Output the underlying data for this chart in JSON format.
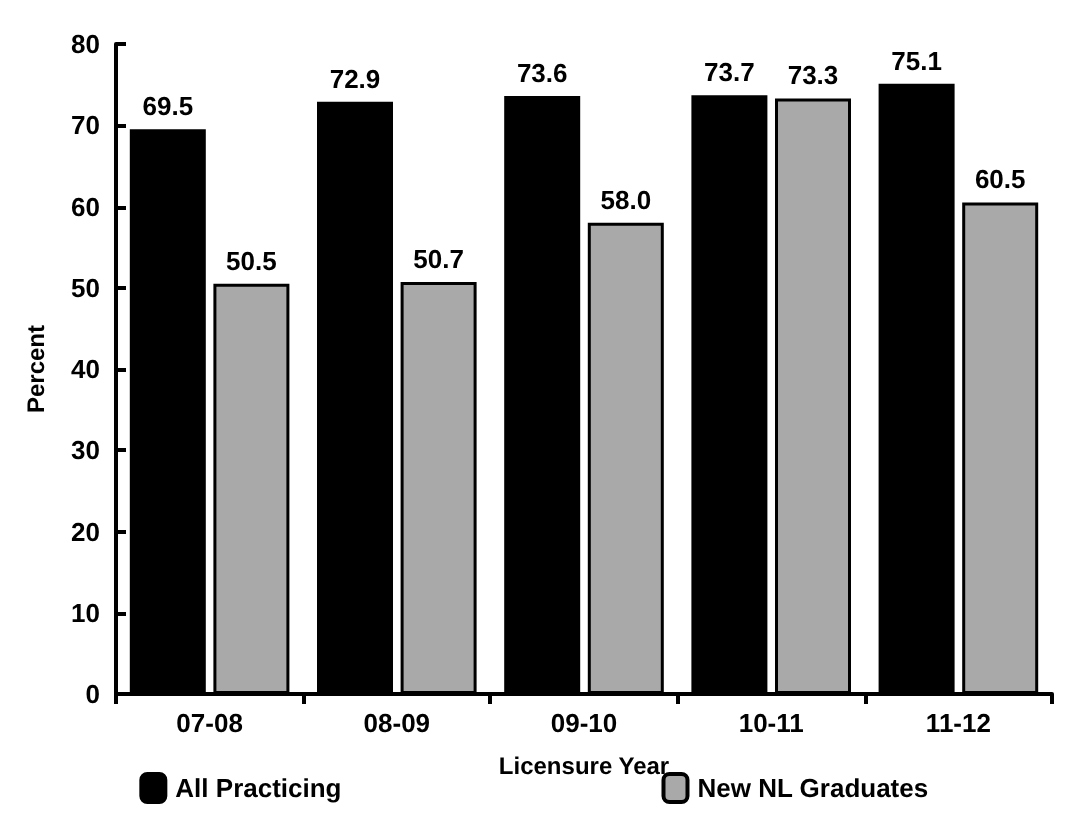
{
  "chart_data": {
    "type": "bar",
    "xlabel": "Licensure Year",
    "ylabel": "Percent",
    "categories": [
      "07-08",
      "08-09",
      "09-10",
      "10-11",
      "11-12"
    ],
    "series": [
      {
        "name": "All Practicing",
        "color": "#000000",
        "values": [
          69.5,
          72.9,
          73.6,
          73.7,
          75.1
        ],
        "value_labels": [
          "69.5",
          "72.9",
          "73.6",
          "73.7",
          "75.1"
        ]
      },
      {
        "name": "New NL Graduates",
        "color": "#a9a9a9",
        "values": [
          50.5,
          50.7,
          58.0,
          73.3,
          60.5
        ],
        "value_labels": [
          "50.5",
          "50.7",
          "58.0",
          "73.3",
          "60.5"
        ]
      }
    ],
    "ylim": [
      0,
      80
    ],
    "yticks": [
      0,
      10,
      20,
      30,
      40,
      50,
      60,
      70,
      80
    ],
    "grid": false,
    "legend": "bottom"
  }
}
